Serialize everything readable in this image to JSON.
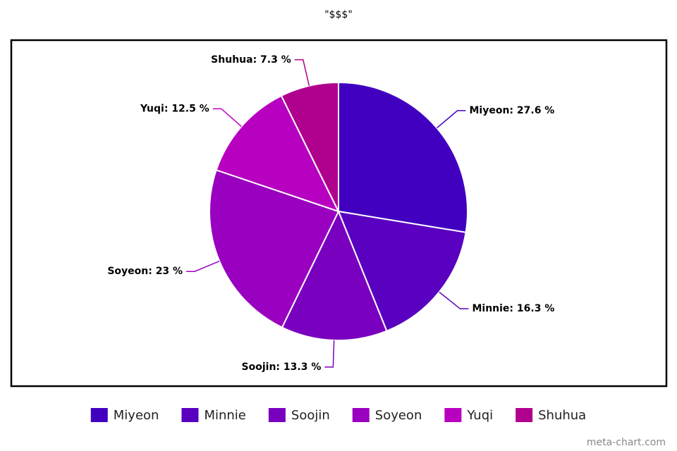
{
  "chart_data": {
    "type": "pie",
    "title": "\"$$$\"",
    "categories": [
      "Miyeon",
      "Minnie",
      "Soojin",
      "Soyeon",
      "Yuqi",
      "Shuhua"
    ],
    "values": [
      27.6,
      16.3,
      13.3,
      23,
      12.5,
      7.3
    ],
    "value_labels": [
      "Miyeon: 27.6 %",
      "Minnie: 16.3 %",
      "Soojin: 13.3 %",
      "Soyeon: 23 %",
      "Yuqi: 12.5 %",
      "Shuhua: 7.3 %"
    ],
    "colors": [
      "#4100c0",
      "#5a00c0",
      "#7a00c0",
      "#9900c0",
      "#b800c0",
      "#b0008e"
    ],
    "legend": "bottom",
    "watermark": "meta-chart.com"
  }
}
